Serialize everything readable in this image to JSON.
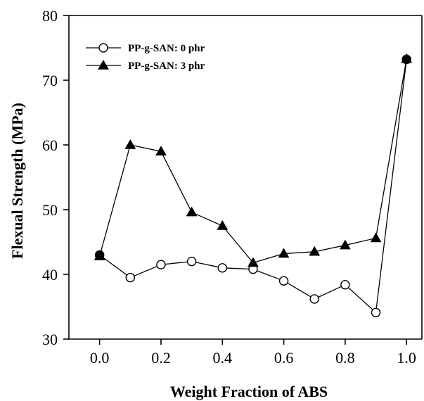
{
  "chart_data": {
    "type": "line",
    "title": "",
    "xlabel": "Weight Fraction of ABS",
    "ylabel": "Flexual Strength (MPa)",
    "xlim": [
      -0.1,
      1.05
    ],
    "ylim": [
      30,
      80
    ],
    "xticks": [
      "0.0",
      "0.2",
      "0.4",
      "0.6",
      "0.8",
      "1.0"
    ],
    "yticks": [
      "30",
      "40",
      "50",
      "60",
      "70",
      "80"
    ],
    "grid": false,
    "legend_position": "top-left",
    "series": [
      {
        "name": "PP-g-SAN: 0 phr",
        "marker": "open-circle",
        "x": [
          0.0,
          0.1,
          0.2,
          0.3,
          0.4,
          0.5,
          0.6,
          0.7,
          0.8,
          0.9,
          1.0
        ],
        "y": [
          43.0,
          39.5,
          41.5,
          42.0,
          41.0,
          40.8,
          39.0,
          36.2,
          38.4,
          34.1,
          73.2
        ]
      },
      {
        "name": "PP-g-SAN: 3 phr",
        "marker": "filled-triangle",
        "x": [
          0.0,
          0.1,
          0.2,
          0.3,
          0.4,
          0.5,
          0.6,
          0.7,
          0.8,
          0.9,
          1.0
        ],
        "y": [
          42.8,
          60.0,
          59.0,
          49.6,
          47.5,
          41.8,
          43.2,
          43.5,
          44.5,
          45.6,
          73.3
        ]
      }
    ]
  }
}
